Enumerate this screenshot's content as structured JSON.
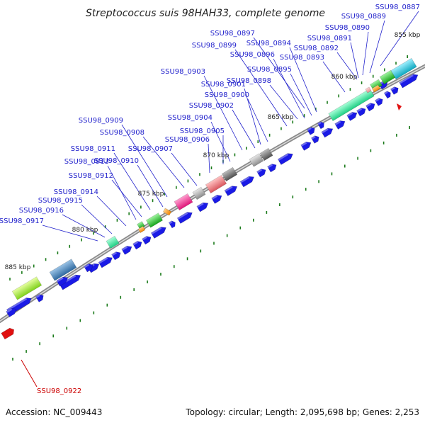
{
  "title": "Streptococcus suis 98HAH33, complete genome",
  "footer": {
    "accession": "Accession: NC_009443",
    "summary": "Topology: circular; Length: 2,095,698 bp; Genes: 2,253"
  },
  "kbp_markers": [
    "855 kbp",
    "860 kbp",
    "865 kbp",
    "870 kbp",
    "875 kbp",
    "880 kbp",
    "885 kbp"
  ],
  "gene_labels": [
    "SSU98_0887",
    "SSU98_0889",
    "SSU98_0890",
    "SSU98_0891",
    "SSU98_0892",
    "SSU98_0893",
    "SSU98_0894",
    "SSU98_0895",
    "SSU98_0896",
    "SSU98_0897",
    "SSU98_0898",
    "SSU98_0899",
    "SSU98_0900",
    "SSU98_0901",
    "SSU98_0902",
    "SSU98_0903",
    "SSU98_0904",
    "SSU98_0905",
    "SSU98_0906",
    "SSU98_0907",
    "SSU98_0908",
    "SSU98_0909",
    "SSU98_0910",
    "SSU98_0911",
    "SSU98_0912",
    "SSU98_0913",
    "SSU98_0914",
    "SSU98_0915",
    "SSU98_0916",
    "SSU98_0917",
    "SSU98_0922"
  ],
  "colors": {
    "label_blue": "#2222cc",
    "label_red": "#cc0000",
    "gene_blue": "#1a1ae6",
    "backbone": "#888888",
    "tick_green": "#1a7a1a"
  }
}
